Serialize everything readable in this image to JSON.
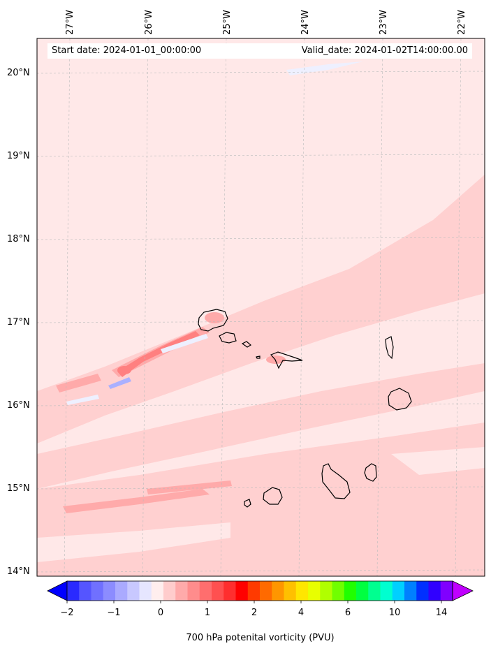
{
  "map": {
    "start_label": "Start date: 2024-01-01_00:00:00",
    "valid_label": "Valid_date: 2024-01-02T14:00:00.00",
    "background_color": "#ffe8e8",
    "pale_red": "#ffd0d0",
    "mid_red": "#ffaaaa",
    "strong_red": "#ff8080",
    "pale_blue": "#eef0ff",
    "mid_blue": "#aab0ff",
    "coastline_color": "#000000",
    "gridline_color": "#bbbbbb"
  },
  "lon_labels": [
    "27°W",
    "26°W",
    "25°W",
    "24°W",
    "23°W",
    "22°W"
  ],
  "lat_labels": [
    "20°N",
    "19°N",
    "18°N",
    "17°N",
    "16°N",
    "15°N",
    "14°N"
  ],
  "colorbar": {
    "label": "700 hPa potenital vorticity (PVU)",
    "ticks": [
      "−2",
      "−1",
      "0",
      "1",
      "2",
      "4",
      "6",
      "8",
      "10",
      "14"
    ],
    "colors": [
      "#0000ff",
      "#2a2aff",
      "#5555ff",
      "#7070ff",
      "#8c8cff",
      "#aaaaff",
      "#c8c8ff",
      "#e6e6ff",
      "#ffeeee",
      "#ffcccc",
      "#ffaaaa",
      "#ff8c8c",
      "#ff6e6e",
      "#ff5050",
      "#ff2e2e",
      "#ff0000",
      "#ff3a00",
      "#ff6a00",
      "#ff9600",
      "#ffc000",
      "#ffe600",
      "#e8ff00",
      "#b0ff00",
      "#70ff00",
      "#20ff00",
      "#00ff40",
      "#00ff90",
      "#00ffd0",
      "#00d0ff",
      "#0080ff",
      "#0030ff",
      "#3000ff",
      "#8000ff",
      "#c000ff"
    ]
  }
}
